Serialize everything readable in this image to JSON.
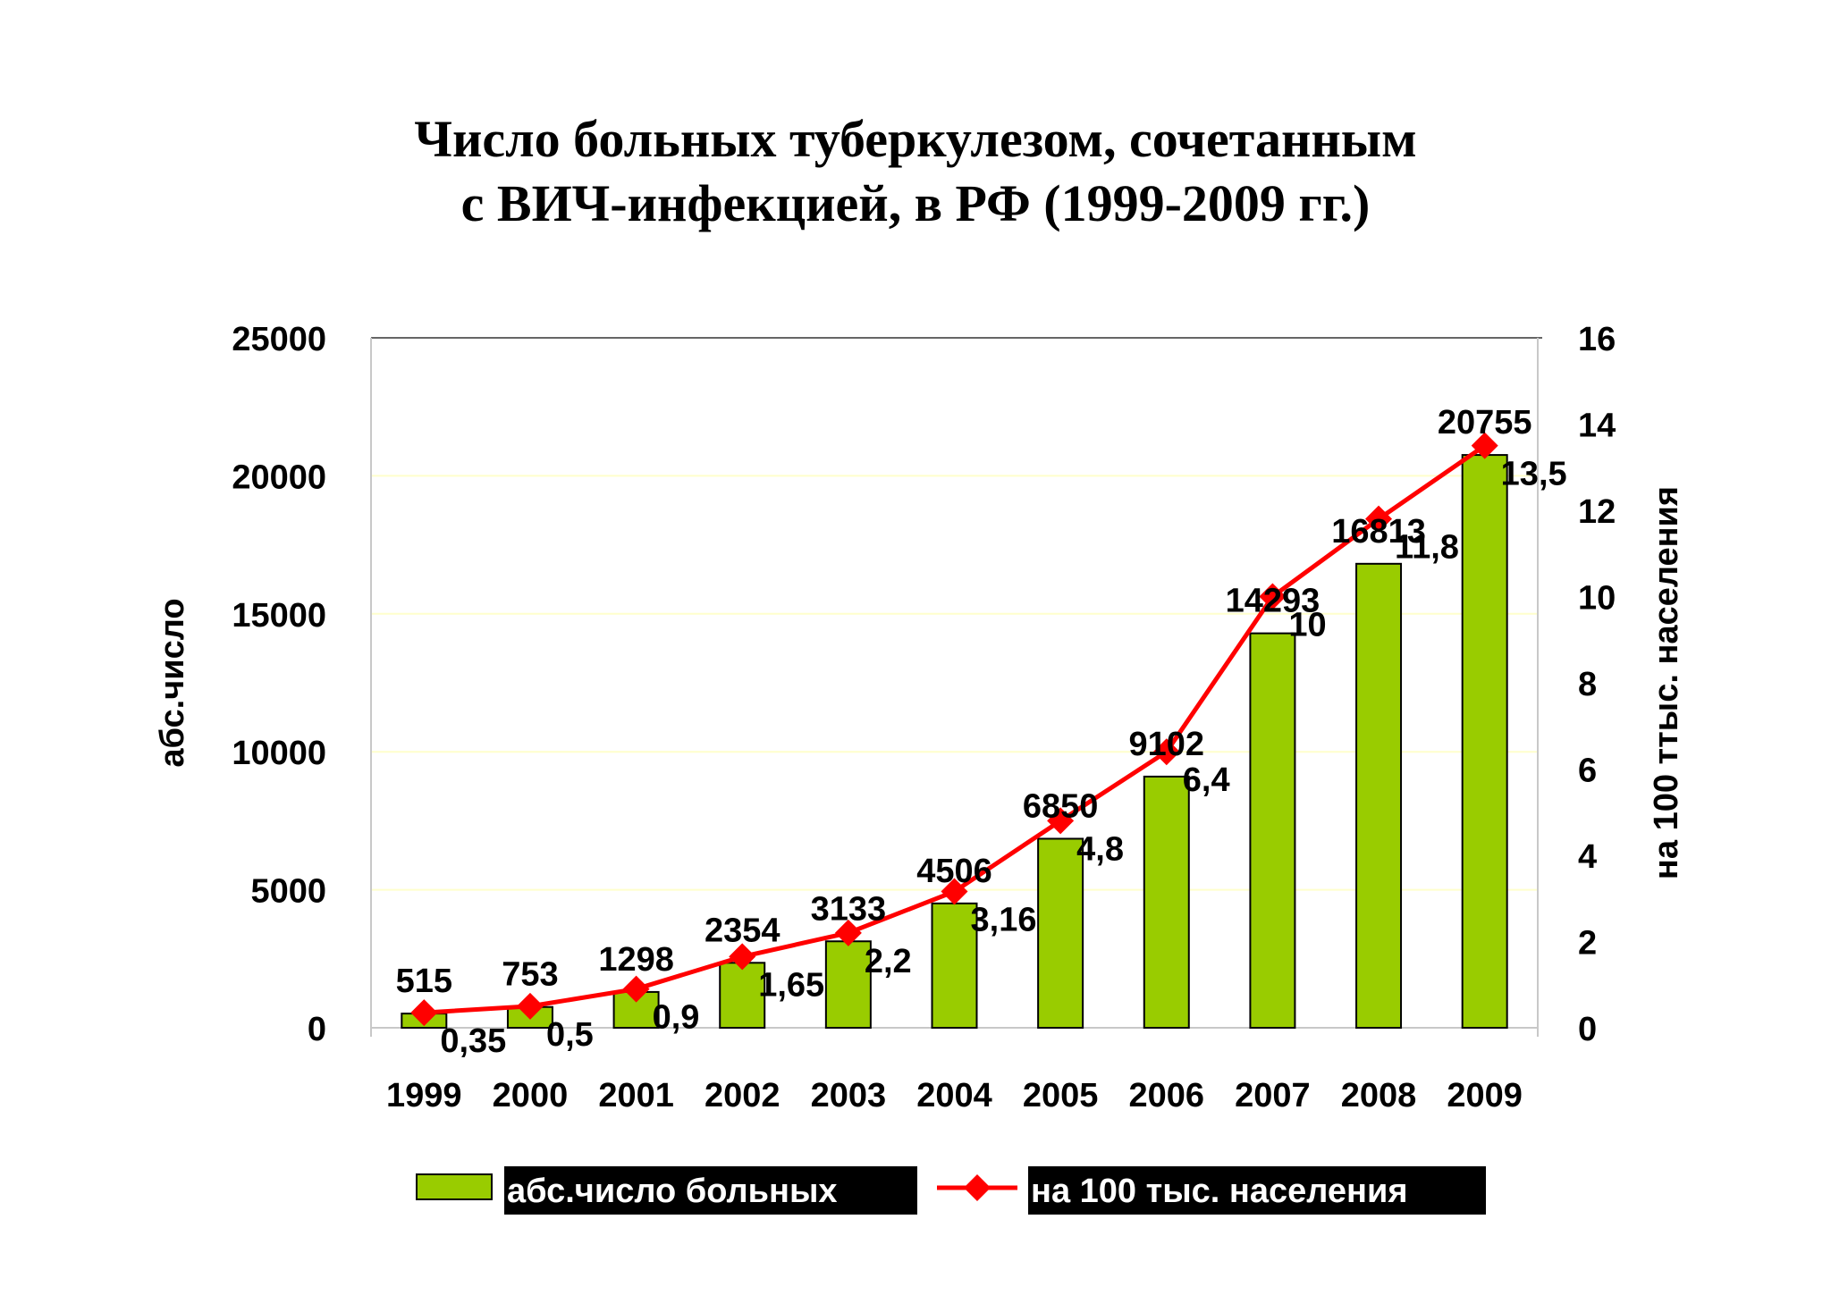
{
  "title": {
    "line1": "Число больных туберкулезом, сочетанным",
    "line2": "с ВИЧ-инфекцией, в РФ (1999-2009 гг.)"
  },
  "colors": {
    "bar": "#99CC00",
    "bar_stroke": "#000000",
    "line": "#FF0000",
    "grid": "#FFFFCC",
    "legend_bg": "#000000"
  },
  "chart_data": {
    "type": "bar+line",
    "categories": [
      "1999",
      "2000",
      "2001",
      "2002",
      "2003",
      "2004",
      "2005",
      "2006",
      "2007",
      "2008",
      "2009"
    ],
    "series": [
      {
        "name": "абс.число больных",
        "type": "bar",
        "axis": "left",
        "values": [
          515,
          753,
          1298,
          2354,
          3133,
          4506,
          6850,
          9102,
          14293,
          16813,
          20755
        ],
        "labels": [
          "515",
          "753",
          "1298",
          "2354",
          "3133",
          "4506",
          "6850",
          "9102",
          "14293",
          "16813",
          "20755"
        ]
      },
      {
        "name": "на 100 тыс. населения",
        "type": "line",
        "axis": "right",
        "values": [
          0.35,
          0.5,
          0.9,
          1.65,
          2.2,
          3.16,
          4.8,
          6.4,
          10,
          11.8,
          13.5
        ],
        "labels": [
          "0,35",
          "0,5",
          "0,9",
          "1,65",
          "2,2",
          "3,16",
          "4,8",
          "6,4",
          "10",
          "11,8",
          "13,5"
        ]
      }
    ],
    "y_left": {
      "label": "абс.число",
      "ylim": [
        0,
        25000
      ],
      "ticks": [
        "0",
        "5000",
        "10000",
        "15000",
        "20000",
        "25000"
      ]
    },
    "y_right": {
      "label": "на 100 ттыс. населения",
      "ylim": [
        0,
        16
      ],
      "ticks": [
        "0",
        "2",
        "4",
        "6",
        "8",
        "10",
        "12",
        "14",
        "16"
      ]
    },
    "grid": true,
    "legend_position": "bottom"
  }
}
